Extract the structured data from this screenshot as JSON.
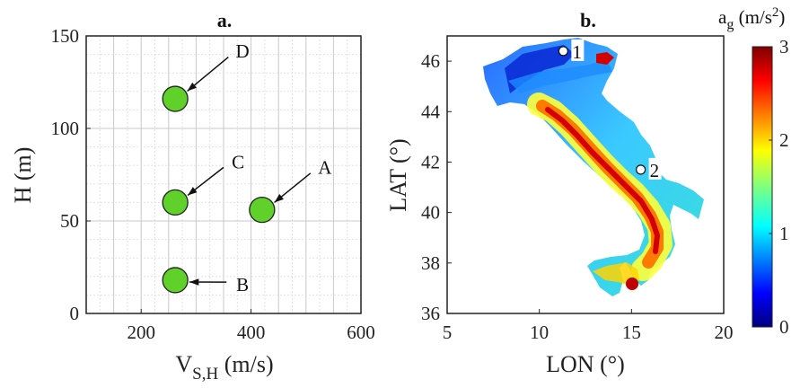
{
  "chart_data": [
    {
      "type": "scatter",
      "title": "a.",
      "xlabel_main": "V",
      "xlabel_sub": "S,H",
      "xlabel_unit": " (m/s)",
      "ylabel": "H (m)",
      "xlim": [
        100,
        600
      ],
      "ylim": [
        0,
        150
      ],
      "xticks": [
        "200",
        "400",
        "600"
      ],
      "yticks": [
        "0",
        "50",
        "100",
        "150"
      ],
      "grid": true,
      "points": [
        {
          "label": "A",
          "x": 420,
          "y": 56
        },
        {
          "label": "B",
          "x": 262,
          "y": 18
        },
        {
          "label": "C",
          "x": 262,
          "y": 60
        },
        {
          "label": "D",
          "x": 262,
          "y": 116
        }
      ],
      "point_color": "#5fd12a"
    },
    {
      "type": "heatmap",
      "title": "b.",
      "xlabel": "LON (°)",
      "ylabel": "LAT (°)",
      "xlim": [
        5,
        20
      ],
      "ylim": [
        36,
        47
      ],
      "xticks": [
        "5",
        "10",
        "15",
        "20"
      ],
      "yticks": [
        "36",
        "38",
        "40",
        "42",
        "44",
        "46"
      ],
      "colorbar": {
        "label_main": "a",
        "label_sub": "g",
        "label_unit": " (m/s",
        "label_sup": "2",
        "label_close": ")",
        "range": [
          0,
          3
        ],
        "ticks": [
          "0",
          "1",
          "2",
          "3"
        ]
      },
      "sites": [
        {
          "label": "1",
          "lon": 11.3,
          "lat": 46.4
        },
        {
          "label": "2",
          "lon": 15.5,
          "lat": 41.7
        }
      ]
    }
  ]
}
